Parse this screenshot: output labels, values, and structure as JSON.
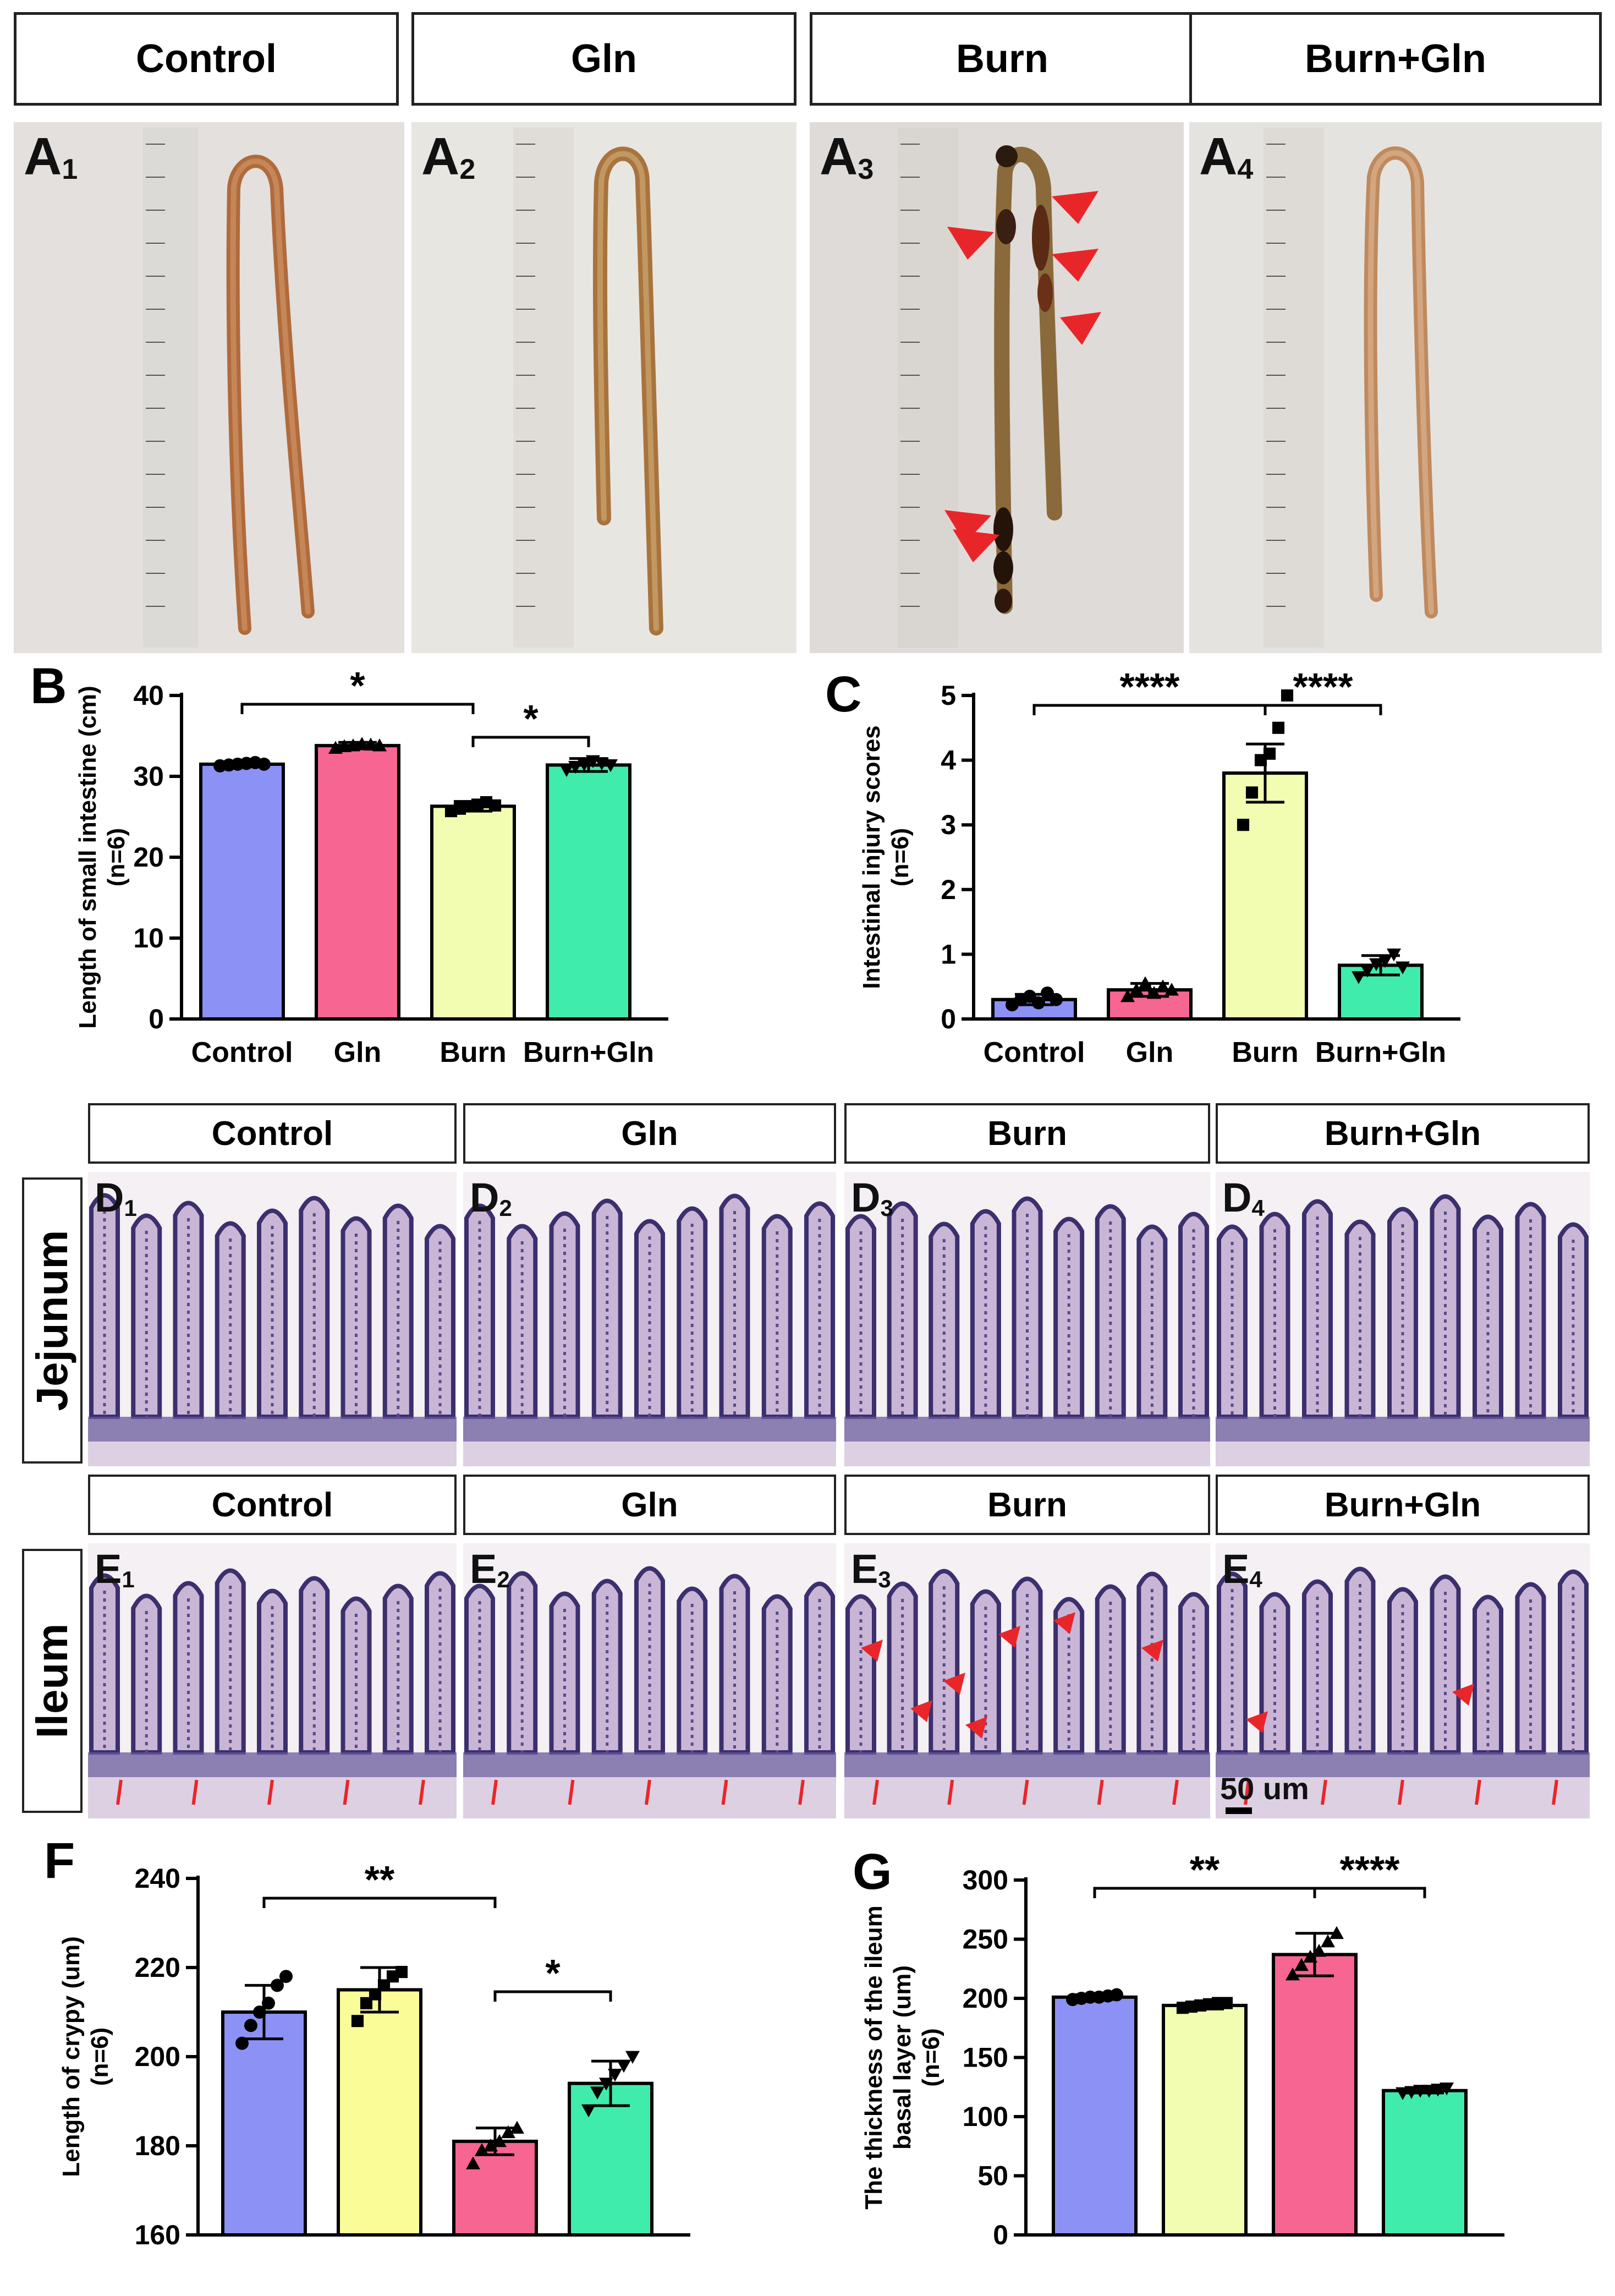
{
  "groups": [
    "Control",
    "Gln",
    "Burn",
    "Burn+Gln"
  ],
  "panel_letters": {
    "B": "B",
    "C": "C",
    "F": "F",
    "G": "G"
  },
  "photo_labels": {
    "A": [
      {
        "letter": "A",
        "sub": "1"
      },
      {
        "letter": "A",
        "sub": "2"
      },
      {
        "letter": "A",
        "sub": "3"
      },
      {
        "letter": "A",
        "sub": "4"
      }
    ],
    "D": [
      {
        "letter": "D",
        "sub": "1"
      },
      {
        "letter": "D",
        "sub": "2"
      },
      {
        "letter": "D",
        "sub": "3"
      },
      {
        "letter": "D",
        "sub": "4"
      }
    ],
    "E": [
      {
        "letter": "E",
        "sub": "1"
      },
      {
        "letter": "E",
        "sub": "2"
      },
      {
        "letter": "E",
        "sub": "3"
      },
      {
        "letter": "E",
        "sub": "4"
      }
    ]
  },
  "row_labels": {
    "jejunum": "Jejunum",
    "ileum": "Ileum"
  },
  "scale_bar": "50 um",
  "chart_data": [
    {
      "id": "B",
      "type": "bar",
      "categories": [
        "Control",
        "Gln",
        "Burn",
        "Burn+Gln"
      ],
      "values": [
        31.5,
        33.8,
        26.3,
        31.4
      ],
      "errors": [
        0.3,
        0.4,
        0.6,
        0.8
      ],
      "markers": [
        "circle",
        "triangle",
        "square",
        "triangle-down"
      ],
      "points": [
        [
          31.3,
          31.4,
          31.5,
          31.6,
          31.7,
          31.5
        ],
        [
          33.5,
          33.7,
          33.8,
          34.0,
          33.9,
          33.8
        ],
        [
          25.7,
          26.0,
          26.3,
          26.5,
          26.8,
          26.4
        ],
        [
          30.8,
          31.2,
          31.5,
          31.9,
          31.6,
          31.4
        ]
      ],
      "colors": [
        "#8c91f5",
        "#f76592",
        "#f2fdb2",
        "#40ecac"
      ],
      "ylabel": "Length of small intestine (cm)",
      "ylabel2": "(n=6)",
      "ylim": [
        0,
        40
      ],
      "yticks": [
        0,
        10,
        20,
        30,
        40
      ],
      "brackets": [
        {
          "from": 0,
          "to": 2,
          "label": "*"
        },
        {
          "from": 2,
          "to": 3,
          "label": "*"
        }
      ]
    },
    {
      "id": "C",
      "type": "bar",
      "categories": [
        "Control",
        "Gln",
        "Burn",
        "Burn+Gln"
      ],
      "values": [
        0.3,
        0.45,
        3.8,
        0.83
      ],
      "errors": [
        0.08,
        0.1,
        0.45,
        0.15
      ],
      "markers": [
        "circle",
        "triangle",
        "square",
        "triangle-down"
      ],
      "points": [
        [
          0.22,
          0.3,
          0.35,
          0.25,
          0.4,
          0.3
        ],
        [
          0.35,
          0.45,
          0.55,
          0.4,
          0.5,
          0.45
        ],
        [
          3.0,
          3.5,
          4.0,
          4.1,
          4.5,
          5.0
        ],
        [
          0.65,
          0.75,
          0.85,
          0.9,
          1.0,
          0.8
        ]
      ],
      "colors": [
        "#8c91f5",
        "#f76592",
        "#f2fdb2",
        "#40ecac"
      ],
      "ylabel": "Intestinal injury scores",
      "ylabel2": "(n=6)",
      "ylim": [
        0,
        5
      ],
      "yticks": [
        0,
        1,
        2,
        3,
        4,
        5
      ],
      "brackets": [
        {
          "from": 0,
          "to": 2,
          "label": "****"
        },
        {
          "from": 2,
          "to": 3,
          "label": "****"
        }
      ]
    },
    {
      "id": "F",
      "type": "bar",
      "categories": [
        "",
        "",
        "",
        ""
      ],
      "values": [
        210,
        215,
        181,
        194
      ],
      "errors": [
        6,
        5,
        3,
        5
      ],
      "markers": [
        "circle",
        "square",
        "triangle",
        "triangle-down"
      ],
      "points": [
        [
          203,
          207,
          210,
          212,
          216,
          218
        ],
        [
          208,
          212,
          214,
          216,
          218,
          219
        ],
        [
          176,
          179,
          180,
          181,
          183,
          184
        ],
        [
          188,
          192,
          194,
          196,
          198,
          200
        ]
      ],
      "colors": [
        "#8c91f5",
        "#fafc98",
        "#f76592",
        "#40ecac"
      ],
      "ylabel": "Length of crypy (um)",
      "ylabel2": "(n=6)",
      "ylim": [
        160,
        240
      ],
      "yticks": [
        160,
        180,
        200,
        220,
        240
      ],
      "brackets": [
        {
          "from": 0,
          "to": 2,
          "label": "**"
        },
        {
          "from": 2,
          "to": 3,
          "label": "*"
        }
      ]
    },
    {
      "id": "G",
      "type": "bar",
      "categories": [
        "",
        "",
        "",
        ""
      ],
      "values": [
        201,
        194,
        237,
        122
      ],
      "errors": [
        2,
        3,
        18,
        2
      ],
      "markers": [
        "circle",
        "square",
        "triangle",
        "triangle-down"
      ],
      "points": [
        [
          199,
          200,
          201,
          201,
          202,
          203
        ],
        [
          192,
          193,
          194,
          195,
          196,
          196
        ],
        [
          220,
          228,
          235,
          240,
          248,
          255
        ],
        [
          120,
          121,
          122,
          122,
          123,
          124
        ]
      ],
      "colors": [
        "#8c91f5",
        "#f2fdb2",
        "#f76592",
        "#40ecac"
      ],
      "ylabel": "The thickness of the  ileum",
      "ylabel2": "basal layer (um)",
      "ylabel3": "(n=6)",
      "ylim": [
        0,
        300
      ],
      "yticks": [
        0,
        50,
        100,
        150,
        200,
        250,
        300
      ],
      "brackets": [
        {
          "from": 0,
          "to": 2,
          "label": "**"
        },
        {
          "from": 2,
          "to": 3,
          "label": "****"
        }
      ]
    }
  ]
}
